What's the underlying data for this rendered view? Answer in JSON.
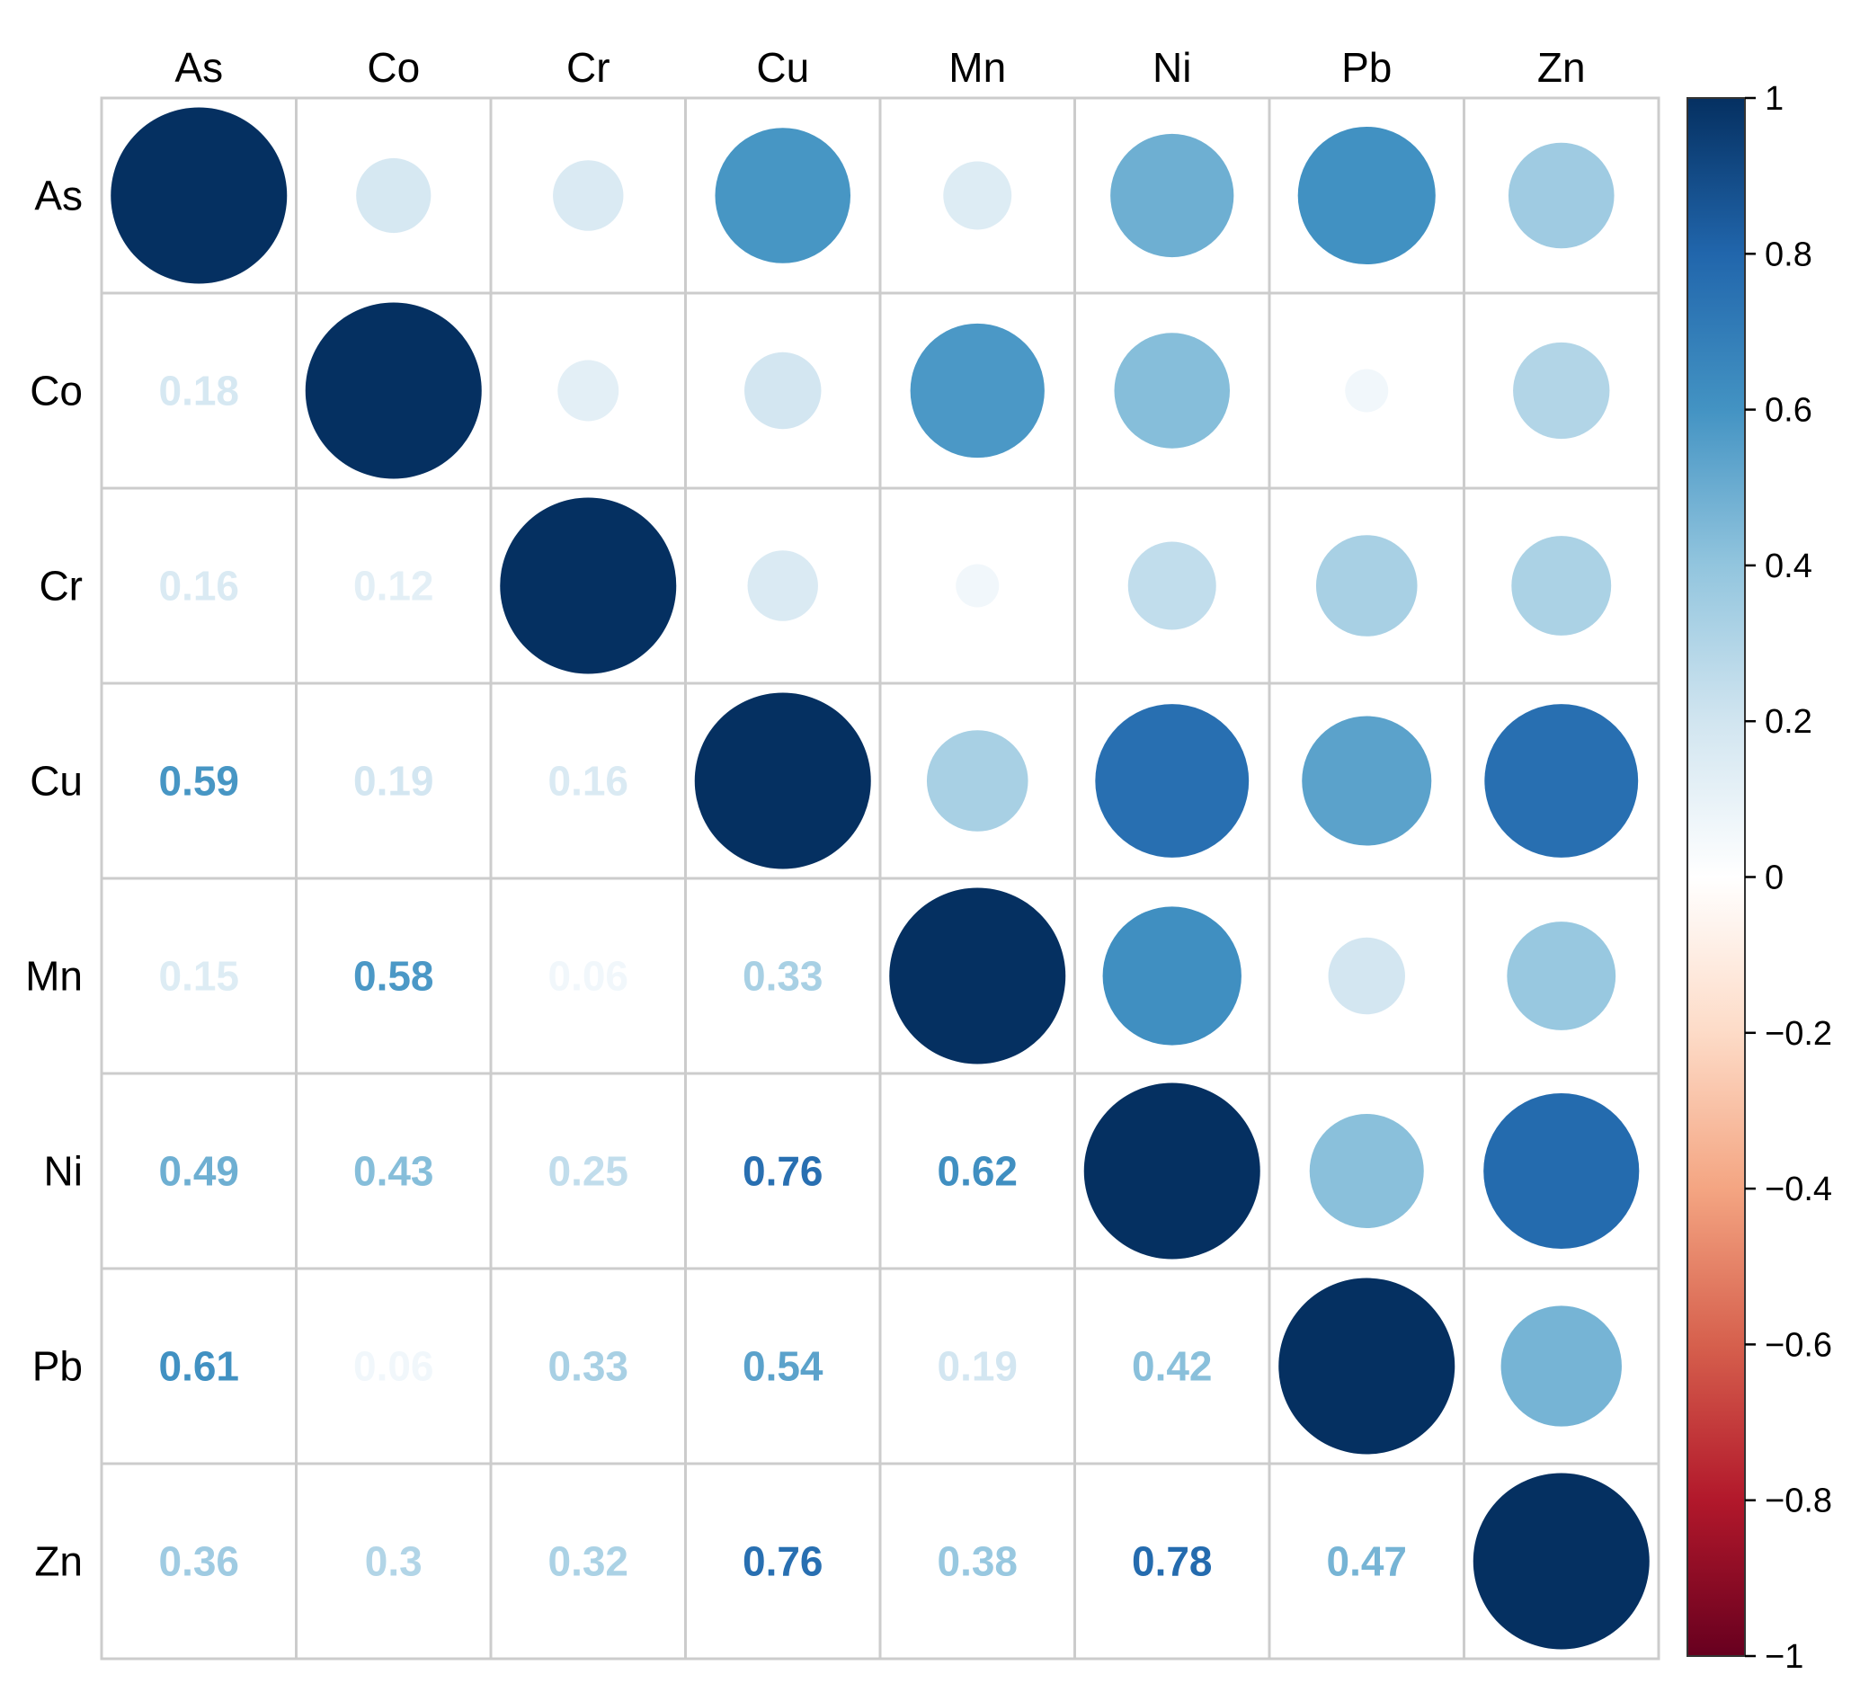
{
  "chart_data": {
    "type": "heatmap",
    "style": "correlation-matrix: circles in upper triangle and diagonal, numeric coefficients in lower triangle",
    "variables": [
      "As",
      "Co",
      "Cr",
      "Cu",
      "Mn",
      "Ni",
      "Pb",
      "Zn"
    ],
    "matrix": [
      [
        1.0,
        0.18,
        0.16,
        0.59,
        0.15,
        0.49,
        0.61,
        0.36
      ],
      [
        0.18,
        1.0,
        0.12,
        0.19,
        0.58,
        0.43,
        0.06,
        0.3
      ],
      [
        0.16,
        0.12,
        1.0,
        0.16,
        0.06,
        0.25,
        0.33,
        0.32
      ],
      [
        0.59,
        0.19,
        0.16,
        1.0,
        0.33,
        0.76,
        0.54,
        0.76
      ],
      [
        0.15,
        0.58,
        0.06,
        0.33,
        1.0,
        0.62,
        0.19,
        0.38
      ],
      [
        0.49,
        0.43,
        0.25,
        0.76,
        0.62,
        1.0,
        0.42,
        0.78
      ],
      [
        0.61,
        0.06,
        0.33,
        0.54,
        0.19,
        0.42,
        1.0,
        0.47
      ],
      [
        0.36,
        0.3,
        0.32,
        0.76,
        0.38,
        0.78,
        0.47,
        1.0
      ]
    ],
    "value_labels": [
      [
        "",
        "",
        "",
        "",
        "",
        "",
        "",
        ""
      ],
      [
        "0.18",
        "",
        "",
        "",
        "",
        "",
        "",
        ""
      ],
      [
        "0.16",
        "0.12",
        "",
        "",
        "",
        "",
        "",
        ""
      ],
      [
        "0.59",
        "0.19",
        "0.16",
        "",
        "",
        "",
        "",
        ""
      ],
      [
        "0.15",
        "0.58",
        "0.06",
        "0.33",
        "",
        "",
        "",
        ""
      ],
      [
        "0.49",
        "0.43",
        "0.25",
        "0.76",
        "0.62",
        "",
        "",
        ""
      ],
      [
        "0.61",
        "0.06",
        "0.33",
        "0.54",
        "0.19",
        "0.42",
        "",
        ""
      ],
      [
        "0.36",
        "0.3",
        "0.32",
        "0.76",
        "0.38",
        "0.78",
        "0.47",
        ""
      ]
    ],
    "colorbar": {
      "range": [
        -1,
        1
      ],
      "ticks": [
        1,
        0.8,
        0.6,
        0.4,
        0.2,
        0,
        -0.2,
        -0.4,
        -0.6,
        -0.8,
        -1
      ],
      "tick_labels": [
        "1",
        "0.8",
        "0.6",
        "0.4",
        "0.2",
        "0",
        "−0.2",
        "−0.4",
        "−0.6",
        "−0.8",
        "−1"
      ],
      "colors": [
        "#67001F",
        "#B2182B",
        "#D6604D",
        "#F4A582",
        "#FDDBC7",
        "#FFFFFF",
        "#D1E5F0",
        "#92C5DE",
        "#4393C3",
        "#2166AC",
        "#053061"
      ],
      "color_stops": [
        -1,
        -0.8,
        -0.6,
        -0.4,
        -0.2,
        0,
        0.2,
        0.4,
        0.6,
        0.8,
        1
      ]
    },
    "title": "",
    "xlabel": "",
    "ylabel": "",
    "legend": "right"
  }
}
